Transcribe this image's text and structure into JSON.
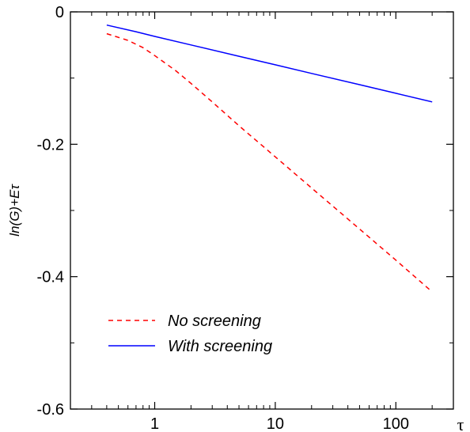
{
  "chart_data": {
    "type": "line",
    "xlabel": "τ",
    "ylabel": "ln(G)+Eτ",
    "xscale": "log",
    "xlim": [
      0.2,
      300
    ],
    "ylim": [
      -0.6,
      0
    ],
    "xticks": [
      {
        "value": 1,
        "label": "1"
      },
      {
        "value": 10,
        "label": "10"
      },
      {
        "value": 100,
        "label": "100"
      }
    ],
    "yticks": [
      {
        "value": 0,
        "label": "0"
      },
      {
        "value": -0.2,
        "label": "-0.2"
      },
      {
        "value": -0.4,
        "label": "-0.4"
      },
      {
        "value": -0.6,
        "label": "-0.6"
      }
    ],
    "grid": false,
    "legend_position": "bottom-left",
    "series": [
      {
        "name": "No screening",
        "color": "#ff0000",
        "style": "dashed",
        "x": [
          0.4,
          0.6,
          0.8,
          1,
          1.5,
          2,
          3,
          5,
          10,
          20,
          50,
          100,
          200
        ],
        "y": [
          -0.033,
          -0.043,
          -0.054,
          -0.066,
          -0.089,
          -0.108,
          -0.136,
          -0.172,
          -0.219,
          -0.266,
          -0.328,
          -0.375,
          -0.423
        ]
      },
      {
        "name": "With screening",
        "color": "#0000ff",
        "style": "solid",
        "x": [
          0.4,
          0.7,
          1,
          2,
          5,
          10,
          20,
          50,
          100,
          200
        ],
        "y": [
          -0.02,
          -0.03,
          -0.037,
          -0.05,
          -0.067,
          -0.08,
          -0.093,
          -0.11,
          -0.123,
          -0.136
        ]
      }
    ]
  }
}
